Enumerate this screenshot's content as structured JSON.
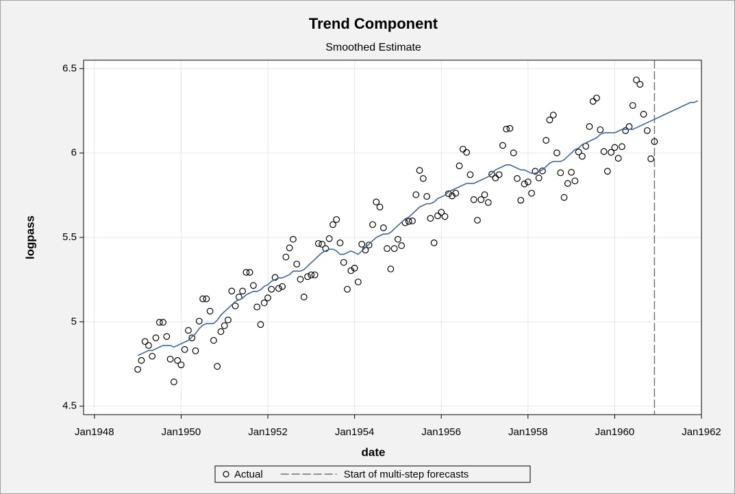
{
  "chart_data": {
    "type": "scatter",
    "title": "Trend Component",
    "subtitle": "Smoothed Estimate",
    "x_label": "date",
    "y_label": "logpass",
    "xlim": [
      "1947-10",
      "1962-01"
    ],
    "xticks": [
      {
        "value": "1948-01",
        "label": "Jan1948"
      },
      {
        "value": "1950-01",
        "label": "Jan1950"
      },
      {
        "value": "1952-01",
        "label": "Jan1952"
      },
      {
        "value": "1954-01",
        "label": "Jan1954"
      },
      {
        "value": "1956-01",
        "label": "Jan1956"
      },
      {
        "value": "1958-01",
        "label": "Jan1958"
      },
      {
        "value": "1960-01",
        "label": "Jan1960"
      },
      {
        "value": "1962-01",
        "label": "Jan1962"
      }
    ],
    "ylim": [
      4.45,
      6.55
    ],
    "yticks": [
      4.5,
      5,
      5.5,
      6,
      6.5
    ],
    "grid": true,
    "x": [
      "1949-01",
      "1949-02",
      "1949-03",
      "1949-04",
      "1949-05",
      "1949-06",
      "1949-07",
      "1949-08",
      "1949-09",
      "1949-10",
      "1949-11",
      "1949-12",
      "1950-01",
      "1950-02",
      "1950-03",
      "1950-04",
      "1950-05",
      "1950-06",
      "1950-07",
      "1950-08",
      "1950-09",
      "1950-10",
      "1950-11",
      "1950-12",
      "1951-01",
      "1951-02",
      "1951-03",
      "1951-04",
      "1951-05",
      "1951-06",
      "1951-07",
      "1951-08",
      "1951-09",
      "1951-10",
      "1951-11",
      "1951-12",
      "1952-01",
      "1952-02",
      "1952-03",
      "1952-04",
      "1952-05",
      "1952-06",
      "1952-07",
      "1952-08",
      "1952-09",
      "1952-10",
      "1952-11",
      "1952-12",
      "1953-01",
      "1953-02",
      "1953-03",
      "1953-04",
      "1953-05",
      "1953-06",
      "1953-07",
      "1953-08",
      "1953-09",
      "1953-10",
      "1953-11",
      "1953-12",
      "1954-01",
      "1954-02",
      "1954-03",
      "1954-04",
      "1954-05",
      "1954-06",
      "1954-07",
      "1954-08",
      "1954-09",
      "1954-10",
      "1954-11",
      "1954-12",
      "1955-01",
      "1955-02",
      "1955-03",
      "1955-04",
      "1955-05",
      "1955-06",
      "1955-07",
      "1955-08",
      "1955-09",
      "1955-10",
      "1955-11",
      "1955-12",
      "1956-01",
      "1956-02",
      "1956-03",
      "1956-04",
      "1956-05",
      "1956-06",
      "1956-07",
      "1956-08",
      "1956-09",
      "1956-10",
      "1956-11",
      "1956-12",
      "1957-01",
      "1957-02",
      "1957-03",
      "1957-04",
      "1957-05",
      "1957-06",
      "1957-07",
      "1957-08",
      "1957-09",
      "1957-10",
      "1957-11",
      "1957-12",
      "1958-01",
      "1958-02",
      "1958-03",
      "1958-04",
      "1958-05",
      "1958-06",
      "1958-07",
      "1958-08",
      "1958-09",
      "1958-10",
      "1958-11",
      "1958-12",
      "1959-01",
      "1959-02",
      "1959-03",
      "1959-04",
      "1959-05",
      "1959-06",
      "1959-07",
      "1959-08",
      "1959-09",
      "1959-10",
      "1959-11",
      "1959-12",
      "1960-01",
      "1960-02",
      "1960-03",
      "1960-04",
      "1960-05",
      "1960-06",
      "1960-07",
      "1960-08",
      "1960-09",
      "1960-10",
      "1960-11",
      "1960-12",
      "1961-01",
      "1961-02",
      "1961-03",
      "1961-04",
      "1961-05",
      "1961-06",
      "1961-07",
      "1961-08",
      "1961-09",
      "1961-10",
      "1961-11",
      "1961-12"
    ],
    "series": [
      {
        "name": "Actual",
        "style": "circle",
        "color": "#000000",
        "values": [
          4.718,
          4.771,
          4.883,
          4.86,
          4.796,
          4.905,
          4.997,
          4.997,
          4.913,
          4.779,
          4.644,
          4.771,
          4.745,
          4.836,
          4.949,
          4.905,
          4.828,
          5.004,
          5.136,
          5.136,
          5.063,
          4.89,
          4.736,
          4.942,
          4.977,
          5.011,
          5.182,
          5.094,
          5.147,
          5.182,
          5.293,
          5.293,
          5.215,
          5.088,
          4.984,
          5.112,
          5.142,
          5.193,
          5.263,
          5.198,
          5.209,
          5.384,
          5.438,
          5.489,
          5.342,
          5.252,
          5.147,
          5.268,
          5.278,
          5.278,
          5.464,
          5.46,
          5.434,
          5.493,
          5.576,
          5.606,
          5.468,
          5.352,
          5.193,
          5.303,
          5.318,
          5.236,
          5.46,
          5.425,
          5.455,
          5.576,
          5.71,
          5.68,
          5.557,
          5.434,
          5.313,
          5.434,
          5.489,
          5.451,
          5.587,
          5.595,
          5.598,
          5.753,
          5.897,
          5.849,
          5.743,
          5.613,
          5.468,
          5.628,
          5.649,
          5.624,
          5.759,
          5.746,
          5.762,
          5.924,
          6.023,
          6.004,
          5.872,
          5.724,
          5.602,
          5.724,
          5.753,
          5.707,
          5.875,
          5.852,
          5.872,
          6.045,
          6.142,
          6.146,
          6.001,
          5.849,
          5.72,
          5.817,
          5.829,
          5.762,
          5.892,
          5.852,
          5.894,
          6.075,
          6.196,
          6.225,
          6.001,
          5.883,
          5.737,
          5.82,
          5.886,
          5.835,
          6.006,
          5.981,
          6.04,
          6.157,
          6.306,
          6.326,
          6.138,
          6.009,
          5.892,
          6.004,
          6.033,
          5.969,
          6.038,
          6.133,
          6.157,
          6.282,
          6.433,
          6.407,
          6.23,
          6.133,
          5.966,
          6.068,
          null,
          null,
          null,
          null,
          null,
          null,
          null,
          null,
          null,
          null,
          null,
          null
        ]
      },
      {
        "style": "line",
        "color": "#3b63a6",
        "values": [
          4.8,
          4.81,
          4.82,
          4.83,
          4.83,
          4.84,
          4.85,
          4.86,
          4.86,
          4.86,
          4.85,
          4.86,
          4.87,
          4.88,
          4.89,
          4.91,
          4.93,
          4.96,
          4.98,
          4.99,
          4.99,
          4.99,
          5.01,
          5.04,
          5.06,
          5.08,
          5.1,
          5.12,
          5.13,
          5.14,
          5.16,
          5.17,
          5.18,
          5.18,
          5.19,
          5.21,
          5.22,
          5.24,
          5.25,
          5.26,
          5.26,
          5.27,
          5.28,
          5.3,
          5.3,
          5.3,
          5.31,
          5.33,
          5.35,
          5.37,
          5.39,
          5.41,
          5.42,
          5.43,
          5.43,
          5.42,
          5.4,
          5.4,
          5.41,
          5.42,
          5.41,
          5.4,
          5.42,
          5.44,
          5.46,
          5.48,
          5.5,
          5.51,
          5.52,
          5.52,
          5.53,
          5.55,
          5.57,
          5.59,
          5.61,
          5.62,
          5.64,
          5.66,
          5.68,
          5.69,
          5.7,
          5.7,
          5.71,
          5.73,
          5.74,
          5.75,
          5.77,
          5.78,
          5.79,
          5.8,
          5.81,
          5.82,
          5.82,
          5.82,
          5.83,
          5.84,
          5.85,
          5.86,
          5.88,
          5.9,
          5.91,
          5.92,
          5.93,
          5.93,
          5.92,
          5.91,
          5.9,
          5.9,
          5.89,
          5.88,
          5.88,
          5.89,
          5.9,
          5.92,
          5.94,
          5.95,
          5.95,
          5.95,
          5.96,
          5.98,
          6.0,
          6.02,
          6.03,
          6.05,
          6.06,
          6.07,
          6.08,
          6.09,
          6.11,
          6.12,
          6.12,
          6.12,
          6.12,
          6.13,
          6.14,
          6.14,
          6.14,
          6.14,
          6.15,
          6.16,
          6.17,
          6.18,
          6.19,
          6.2,
          6.21,
          6.22,
          6.23,
          6.24,
          6.25,
          6.26,
          6.27,
          6.28,
          6.29,
          6.3,
          6.3,
          6.31
        ]
      }
    ],
    "reference_line": {
      "x": "1960-12",
      "label": "Start of multi-step forecasts",
      "color": "#707070"
    }
  }
}
